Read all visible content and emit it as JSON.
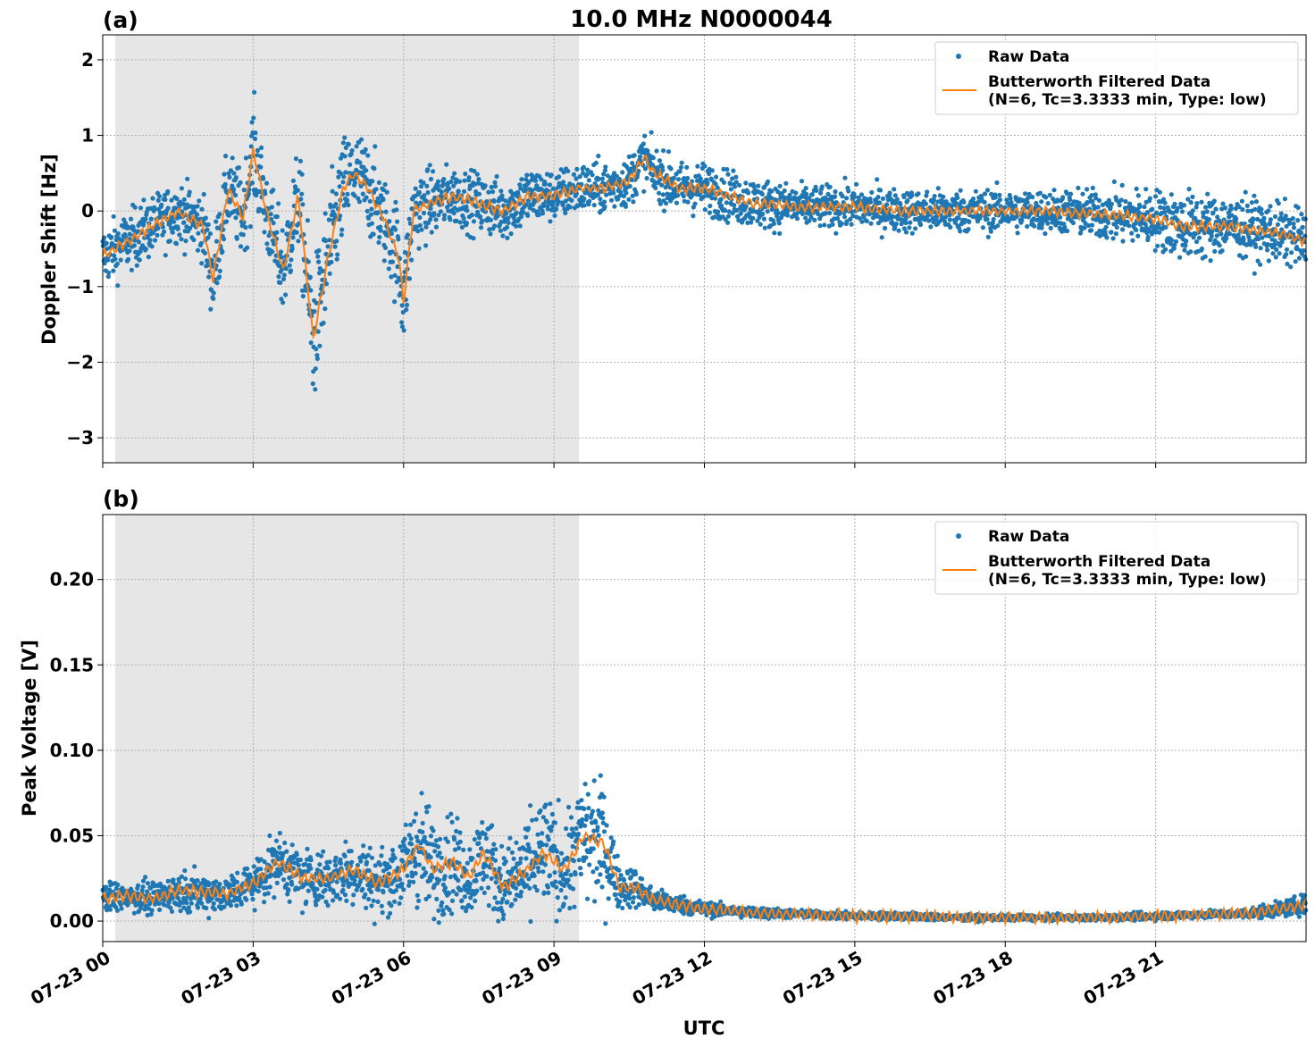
{
  "title": "10.0 MHz N0000044",
  "colors": {
    "raw": "#1f77b4",
    "filtered": "#ff7f0e",
    "shade": "#e6e6e6"
  },
  "chart_data": [
    {
      "type": "scatter",
      "panel_label": "(a)",
      "ylabel": "Doppler Shift [Hz]",
      "xlabel": "",
      "xlim": [
        "07-23 00:00",
        "07-24 00:00"
      ],
      "ylim": [
        -3.33,
        2.33
      ],
      "yticks": [
        2,
        1,
        0,
        -1,
        -2,
        -3
      ],
      "ytick_labels": [
        "2",
        "1",
        "0",
        "−1",
        "−2",
        "−3"
      ],
      "grid": true,
      "legend_position": "top-right",
      "shaded_range_hours": [
        0.25,
        9.5
      ],
      "series": [
        {
          "name": "Raw Data",
          "style": "points",
          "x_hours": [
            0,
            0.5,
            1,
            1.5,
            2,
            2.2,
            2.5,
            2.8,
            3,
            3.3,
            3.6,
            3.9,
            4.2,
            4.5,
            4.8,
            5,
            5.3,
            5.6,
            5.9,
            6,
            6.2,
            6.5,
            7,
            7.5,
            8,
            8.5,
            9,
            9.5,
            10,
            10.5,
            10.8,
            11,
            11.5,
            12,
            12.5,
            13,
            14,
            15,
            16,
            17,
            18,
            19,
            20,
            21,
            21.5,
            22,
            22.5,
            23,
            23.5,
            24
          ],
          "y": [
            -0.6,
            -0.4,
            -0.2,
            0.0,
            -0.2,
            -0.9,
            0.3,
            -0.1,
            0.8,
            -0.1,
            -0.8,
            0.2,
            -1.7,
            -0.6,
            0.3,
            0.5,
            0.3,
            -0.1,
            -0.6,
            -1.2,
            0.0,
            0.1,
            0.2,
            0.1,
            0.0,
            0.2,
            0.2,
            0.3,
            0.3,
            0.4,
            0.7,
            0.5,
            0.3,
            0.3,
            0.2,
            0.1,
            0.05,
            0.05,
            0.0,
            0.0,
            0.0,
            0.0,
            -0.05,
            -0.1,
            -0.2,
            -0.2,
            -0.2,
            -0.25,
            -0.3,
            -0.4
          ],
          "spread": [
            0.35,
            0.35,
            0.35,
            0.35,
            0.4,
            0.5,
            0.45,
            0.5,
            0.6,
            0.5,
            0.55,
            0.6,
            0.8,
            0.75,
            0.6,
            0.55,
            0.55,
            0.5,
            0.6,
            0.6,
            0.5,
            0.4,
            0.35,
            0.35,
            0.35,
            0.35,
            0.3,
            0.3,
            0.3,
            0.3,
            0.3,
            0.3,
            0.3,
            0.3,
            0.3,
            0.3,
            0.25,
            0.25,
            0.25,
            0.25,
            0.25,
            0.25,
            0.3,
            0.35,
            0.4,
            0.4,
            0.35,
            0.35,
            0.35,
            0.35
          ]
        },
        {
          "name": "Butterworth Filtered Data\n(N=6, Tc=3.3333 min, Type: low)",
          "style": "line",
          "x_hours": [
            0,
            0.5,
            1,
            1.5,
            2,
            2.2,
            2.5,
            2.8,
            3,
            3.3,
            3.6,
            3.9,
            4.2,
            4.5,
            4.8,
            5,
            5.3,
            5.6,
            5.9,
            6,
            6.2,
            6.5,
            7,
            7.5,
            8,
            8.5,
            9,
            9.5,
            10,
            10.5,
            10.8,
            11,
            11.5,
            12,
            12.5,
            13,
            14,
            15,
            16,
            17,
            18,
            19,
            20,
            21,
            21.5,
            22,
            22.5,
            23,
            23.5,
            24
          ],
          "y": [
            -0.6,
            -0.4,
            -0.2,
            0.0,
            -0.2,
            -0.9,
            0.3,
            -0.1,
            0.8,
            -0.1,
            -0.8,
            0.2,
            -1.7,
            -0.6,
            0.3,
            0.5,
            0.3,
            -0.1,
            -0.6,
            -1.2,
            0.0,
            0.1,
            0.2,
            0.1,
            0.0,
            0.2,
            0.2,
            0.3,
            0.3,
            0.4,
            0.7,
            0.5,
            0.3,
            0.3,
            0.2,
            0.1,
            0.05,
            0.05,
            0.0,
            0.0,
            0.0,
            0.0,
            -0.05,
            -0.1,
            -0.2,
            -0.2,
            -0.2,
            -0.25,
            -0.3,
            -0.4
          ]
        }
      ]
    },
    {
      "type": "scatter",
      "panel_label": "(b)",
      "ylabel": "Peak Voltage [V]",
      "xlabel": "UTC",
      "xlim": [
        "07-23 00:00",
        "07-24 00:00"
      ],
      "ylim": [
        -0.012,
        0.238
      ],
      "yticks": [
        0.2,
        0.15,
        0.1,
        0.05,
        0.0
      ],
      "ytick_labels": [
        "0.20",
        "0.15",
        "0.10",
        "0.05",
        "0.00"
      ],
      "xticks_hours": [
        0,
        3,
        6,
        9,
        12,
        15,
        18,
        21
      ],
      "xtick_labels": [
        "07-23 00",
        "07-23 03",
        "07-23 06",
        "07-23 09",
        "07-23 12",
        "07-23 15",
        "07-23 18",
        "07-23 21"
      ],
      "grid": true,
      "legend_position": "top-right",
      "shaded_range_hours": [
        0.25,
        9.5
      ],
      "series": [
        {
          "name": "Raw Data",
          "style": "points",
          "x_hours": [
            0,
            0.5,
            1,
            1.5,
            2,
            2.5,
            3,
            3.5,
            4,
            4.5,
            5,
            5.5,
            6,
            6.3,
            6.6,
            7,
            7.3,
            7.6,
            8,
            8.4,
            8.8,
            9.2,
            9.6,
            10,
            10.3,
            10.6,
            11,
            11.5,
            12,
            12.5,
            13,
            14,
            15,
            16,
            17,
            18,
            19,
            20,
            21,
            22,
            22.5,
            23,
            23.5,
            24
          ],
          "y": [
            0.013,
            0.015,
            0.013,
            0.018,
            0.017,
            0.016,
            0.022,
            0.035,
            0.025,
            0.025,
            0.03,
            0.022,
            0.03,
            0.045,
            0.03,
            0.035,
            0.025,
            0.04,
            0.02,
            0.028,
            0.04,
            0.03,
            0.05,
            0.045,
            0.02,
            0.02,
            0.012,
            0.01,
            0.007,
            0.006,
            0.005,
            0.004,
            0.003,
            0.003,
            0.002,
            0.002,
            0.002,
            0.002,
            0.003,
            0.004,
            0.004,
            0.005,
            0.007,
            0.01
          ],
          "spread": [
            0.008,
            0.008,
            0.008,
            0.01,
            0.01,
            0.01,
            0.012,
            0.015,
            0.015,
            0.015,
            0.018,
            0.016,
            0.02,
            0.03,
            0.025,
            0.025,
            0.02,
            0.025,
            0.02,
            0.025,
            0.03,
            0.025,
            0.035,
            0.03,
            0.012,
            0.01,
            0.006,
            0.005,
            0.004,
            0.003,
            0.003,
            0.002,
            0.002,
            0.002,
            0.0015,
            0.0015,
            0.0015,
            0.0015,
            0.002,
            0.002,
            0.002,
            0.003,
            0.004,
            0.005
          ]
        },
        {
          "name": "Butterworth Filtered Data\n(N=6, Tc=3.3333 min, Type: low)",
          "style": "line",
          "x_hours": [
            0,
            0.5,
            1,
            1.5,
            2,
            2.5,
            3,
            3.5,
            4,
            4.5,
            5,
            5.5,
            6,
            6.3,
            6.6,
            7,
            7.3,
            7.6,
            8,
            8.4,
            8.8,
            9.2,
            9.6,
            10,
            10.3,
            10.6,
            11,
            11.5,
            12,
            12.5,
            13,
            14,
            15,
            16,
            17,
            18,
            19,
            20,
            21,
            22,
            22.5,
            23,
            23.5,
            24
          ],
          "y": [
            0.013,
            0.015,
            0.013,
            0.018,
            0.017,
            0.016,
            0.022,
            0.035,
            0.025,
            0.025,
            0.03,
            0.022,
            0.03,
            0.045,
            0.03,
            0.035,
            0.025,
            0.04,
            0.02,
            0.028,
            0.04,
            0.03,
            0.05,
            0.045,
            0.02,
            0.02,
            0.012,
            0.01,
            0.007,
            0.006,
            0.005,
            0.004,
            0.003,
            0.003,
            0.002,
            0.002,
            0.002,
            0.002,
            0.003,
            0.004,
            0.004,
            0.005,
            0.007,
            0.01
          ]
        }
      ]
    }
  ]
}
